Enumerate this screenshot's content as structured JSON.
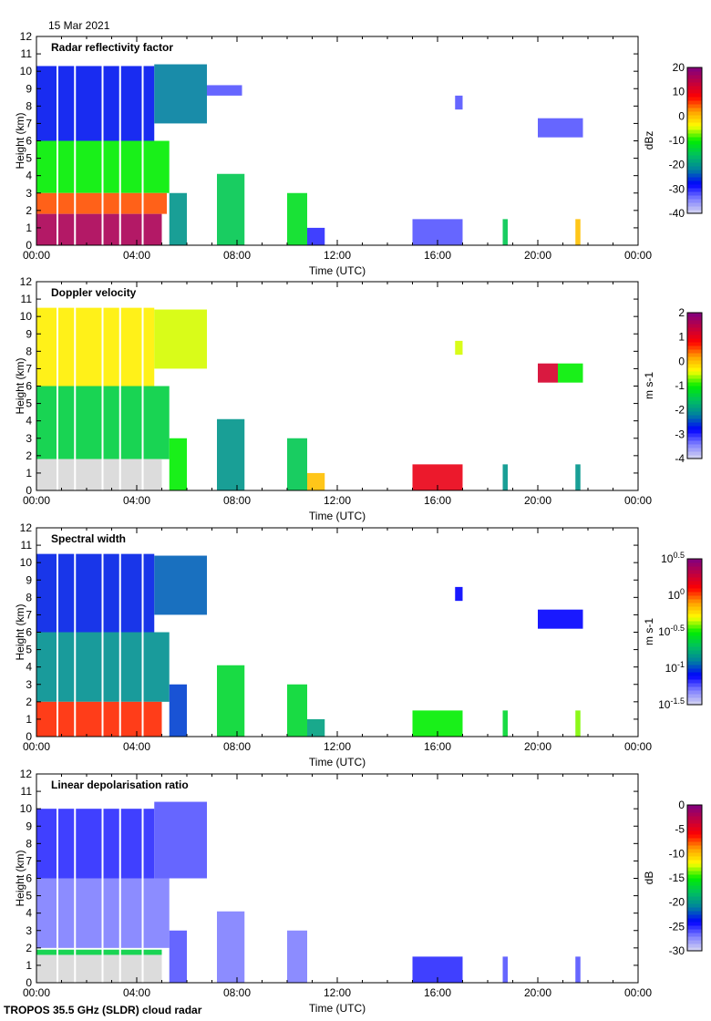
{
  "date": "15 Mar 2021",
  "footer": "TROPOS 35.5 GHz (SLDR) cloud radar",
  "colormap": [
    "#d8d8f0",
    "#8080ff",
    "#0000ff",
    "#0080a0",
    "#00c060",
    "#00ee00",
    "#ffff00",
    "#ffa000",
    "#ff0000",
    "#c00040",
    "#800080"
  ],
  "chart_data": [
    {
      "type": "heatmap",
      "title": "Radar reflectivity factor",
      "xlabel": "Time (UTC)",
      "ylabel": "Height (km)",
      "xlim": [
        0,
        24
      ],
      "ylim": [
        0,
        12
      ],
      "xticks": [
        "00:00",
        "04:00",
        "08:00",
        "12:00",
        "16:00",
        "20:00",
        "00:00"
      ],
      "yticks": [
        "0",
        "1",
        "2",
        "3",
        "4",
        "5",
        "6",
        "7",
        "8",
        "9",
        "10",
        "11",
        "12"
      ],
      "colorbar": {
        "label": "dBz",
        "range": [
          -40,
          20
        ],
        "ticks": [
          "20",
          "10",
          "0",
          "-10",
          "-20",
          "-30",
          "-40"
        ]
      },
      "echoes": [
        [
          0,
          4.7,
          6,
          10.3,
          -27
        ],
        [
          4.7,
          6.8,
          7,
          10.4,
          -22
        ],
        [
          6.8,
          8.2,
          8.6,
          9.2,
          -32
        ],
        [
          0,
          5.3,
          3,
          6,
          -10
        ],
        [
          0,
          5.2,
          1.8,
          3,
          5
        ],
        [
          0,
          5,
          0,
          1.8,
          16
        ],
        [
          5.3,
          6,
          0,
          3,
          -20
        ],
        [
          7.2,
          8.3,
          0,
          4.1,
          -15
        ],
        [
          10,
          10.8,
          0,
          3,
          -12
        ],
        [
          10.8,
          11.5,
          0,
          1,
          -30
        ],
        [
          15,
          17,
          0,
          1.5,
          -32
        ],
        [
          16.7,
          17,
          7.8,
          8.6,
          -32
        ],
        [
          18.6,
          18.8,
          0,
          1.5,
          -15
        ],
        [
          20,
          21.8,
          6.2,
          7.3,
          -32
        ],
        [
          21.5,
          21.7,
          0,
          1.5,
          0
        ]
      ]
    },
    {
      "type": "heatmap",
      "title": "Doppler velocity",
      "xlabel": "Time (UTC)",
      "ylabel": "Height (km)",
      "xlim": [
        0,
        24
      ],
      "ylim": [
        0,
        12
      ],
      "xticks": [
        "00:00",
        "04:00",
        "08:00",
        "12:00",
        "16:00",
        "20:00",
        "00:00"
      ],
      "yticks": [
        "0",
        "1",
        "2",
        "3",
        "4",
        "5",
        "6",
        "7",
        "8",
        "9",
        "10",
        "11",
        "12"
      ],
      "colorbar": {
        "label": "m s-1",
        "range": [
          -4,
          2
        ],
        "ticks": [
          "2",
          "1",
          "0",
          "-1",
          "-2",
          "-3",
          "-4"
        ]
      },
      "echoes": [
        [
          0,
          4.7,
          6,
          10.5,
          -0.3
        ],
        [
          4.7,
          6.8,
          7,
          10.4,
          -0.5
        ],
        [
          0,
          5.3,
          1.8,
          6,
          -1.4
        ],
        [
          0,
          5,
          0,
          1.8,
          -5
        ],
        [
          5.3,
          6,
          0,
          3,
          -1
        ],
        [
          7.2,
          8.3,
          0,
          4.1,
          -2
        ],
        [
          10,
          10.8,
          0,
          3,
          -1.5
        ],
        [
          10.8,
          11.5,
          0,
          1,
          0
        ],
        [
          15,
          17,
          0,
          1.5,
          1
        ],
        [
          16.7,
          17,
          7.8,
          8.6,
          -0.5
        ],
        [
          18.6,
          18.8,
          0,
          1.5,
          -2
        ],
        [
          20,
          20.8,
          6.2,
          7.3,
          1.2
        ],
        [
          20.8,
          21.8,
          6.2,
          7.3,
          -1
        ],
        [
          21.5,
          21.7,
          0,
          1.5,
          -2
        ]
      ]
    },
    {
      "type": "heatmap",
      "title": "Spectral width",
      "xlabel": "Time (UTC)",
      "ylabel": "Height (km)",
      "xlim": [
        0,
        24
      ],
      "ylim": [
        0,
        12
      ],
      "xticks": [
        "00:00",
        "04:00",
        "08:00",
        "12:00",
        "16:00",
        "20:00",
        "00:00"
      ],
      "yticks": [
        "0",
        "1",
        "2",
        "3",
        "4",
        "5",
        "6",
        "7",
        "8",
        "9",
        "10",
        "11",
        "12"
      ],
      "colorbar": {
        "label": "m s-1",
        "range": [
          -1.5,
          0.5
        ],
        "ticks": [
          "10^0.5",
          "10^0",
          "10^-0.5",
          "10^-1",
          "10^-1.5"
        ]
      },
      "echoes": [
        [
          0,
          4.7,
          6,
          10.5,
          -1.05
        ],
        [
          4.7,
          6.8,
          7,
          10.4,
          -0.95
        ],
        [
          0,
          5.3,
          2,
          6,
          -0.85
        ],
        [
          0,
          5,
          0,
          2,
          0.05
        ],
        [
          5.3,
          6,
          0,
          3,
          -1
        ],
        [
          7.2,
          8.3,
          0,
          4.1,
          -0.6
        ],
        [
          10,
          10.8,
          0,
          3,
          -0.6
        ],
        [
          10.8,
          11.5,
          0,
          1,
          -0.8
        ],
        [
          15,
          17,
          0,
          1.5,
          -0.5
        ],
        [
          16.7,
          17,
          7.8,
          8.6,
          -1.1
        ],
        [
          18.6,
          18.8,
          0,
          1.5,
          -0.6
        ],
        [
          20,
          21.8,
          6.2,
          7.3,
          -1.1
        ],
        [
          21.5,
          21.7,
          0,
          1.5,
          -0.4
        ]
      ]
    },
    {
      "type": "heatmap",
      "title": "Linear depolarisation ratio",
      "xlabel": "Time (UTC)",
      "ylabel": "Height (km)",
      "xlim": [
        0,
        24
      ],
      "ylim": [
        0,
        12
      ],
      "xticks": [
        "00:00",
        "04:00",
        "08:00",
        "12:00",
        "16:00",
        "20:00",
        "00:00"
      ],
      "yticks": [
        "0",
        "1",
        "2",
        "3",
        "4",
        "5",
        "6",
        "7",
        "8",
        "9",
        "10",
        "11",
        "12"
      ],
      "colorbar": {
        "label": "dB",
        "range": [
          -30,
          0
        ],
        "ticks": [
          "0",
          "-5",
          "-10",
          "-15",
          "-20",
          "-25",
          "-30"
        ]
      },
      "echoes": [
        [
          0,
          4.7,
          6,
          10,
          -25
        ],
        [
          4.7,
          6.8,
          6,
          10.4,
          -26
        ],
        [
          0,
          5.3,
          2,
          6,
          -27
        ],
        [
          0,
          5,
          1.6,
          1.9,
          -17
        ],
        [
          0,
          5,
          0,
          1.6,
          -31
        ],
        [
          5.3,
          6,
          0,
          3,
          -26
        ],
        [
          7.2,
          8.3,
          0,
          4.1,
          -27
        ],
        [
          10,
          10.8,
          0,
          3,
          -27
        ],
        [
          15,
          17,
          0,
          1.5,
          -25
        ],
        [
          18.6,
          18.8,
          0,
          1.5,
          -26
        ],
        [
          21.5,
          21.7,
          0,
          1.5,
          -26
        ]
      ]
    }
  ]
}
